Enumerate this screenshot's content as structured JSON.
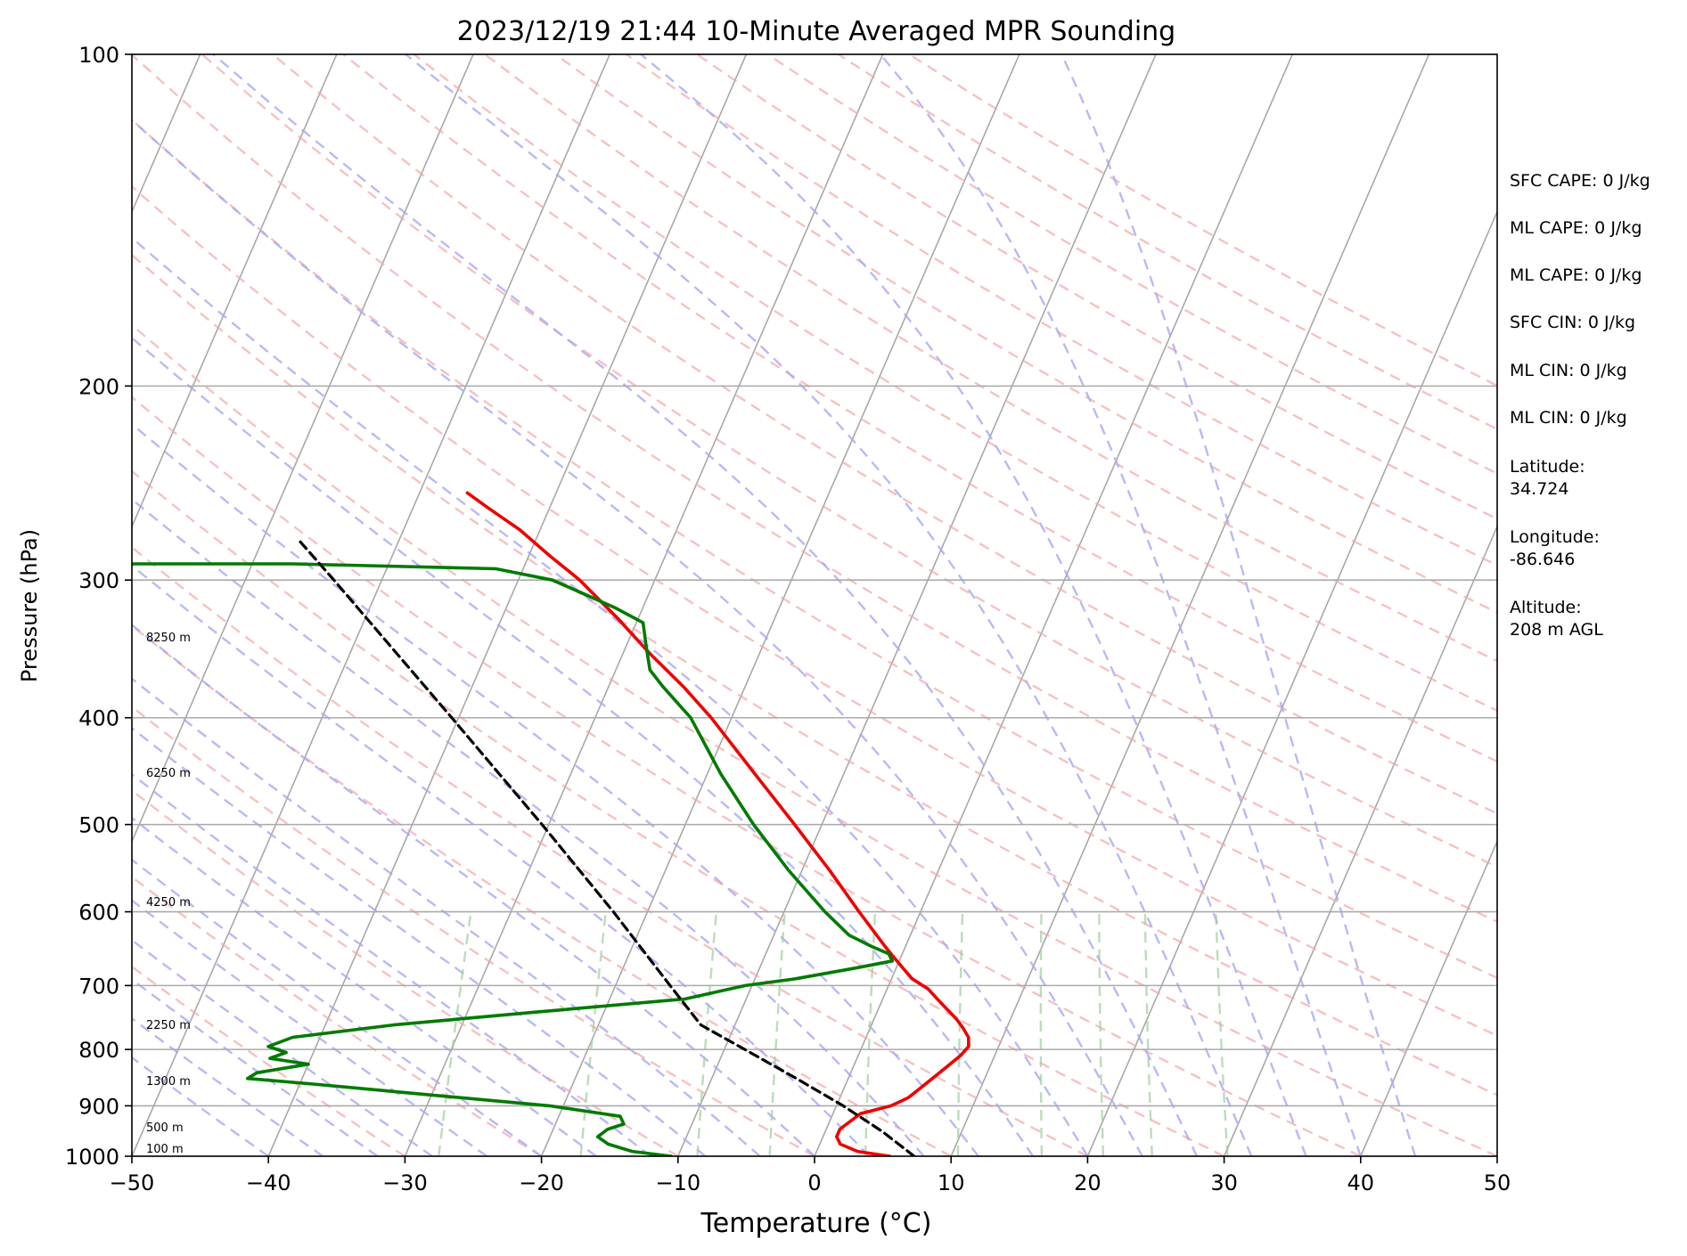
{
  "chart_data": {
    "type": "line",
    "title": "2023/12/19 21:44 10-Minute Averaged MPR Sounding",
    "xlabel": "Temperature (°C)",
    "ylabel": "Pressure (hPa)",
    "xlim": [
      -50,
      50
    ],
    "ylim": [
      1000,
      100
    ],
    "yscale": "log",
    "grid": true,
    "skew_deg_per_decade": 35,
    "x_ticks": [
      -50,
      -40,
      -30,
      -20,
      -10,
      0,
      10,
      20,
      30,
      40,
      50
    ],
    "x_tick_labels": [
      "−50",
      "−40",
      "−30",
      "−20",
      "−10",
      "0",
      "10",
      "20",
      "30",
      "40",
      "50"
    ],
    "y_ticks": [
      1000,
      900,
      800,
      700,
      600,
      500,
      400,
      300,
      200,
      100
    ],
    "y_tick_labels": [
      "1000",
      "900",
      "800",
      "700",
      "600",
      "500",
      "400",
      "300",
      "200",
      "100"
    ],
    "height_labels": [
      {
        "p": 295,
        "text": "8250 m"
      },
      {
        "p": 375,
        "text": "6250 m"
      },
      {
        "p": 462,
        "text": "4250 m"
      },
      {
        "p": 553,
        "text": "2250 m"
      },
      {
        "p": 600,
        "text": "1300 m"
      },
      {
        "p": 640,
        "text": "500 m"
      },
      {
        "p": 661,
        "text": "100 m"
      }
    ],
    "series": [
      {
        "color": "#ee0000",
        "role": "temperature",
        "points": [
          [
            1000,
            5.5
          ],
          [
            990,
            3.0
          ],
          [
            975,
            1.5
          ],
          [
            960,
            1.0
          ],
          [
            945,
            1.0
          ],
          [
            930,
            1.5
          ],
          [
            915,
            2.0
          ],
          [
            900,
            4.0
          ],
          [
            885,
            5.0
          ],
          [
            870,
            5.5
          ],
          [
            855,
            6.0
          ],
          [
            840,
            6.5
          ],
          [
            825,
            7.0
          ],
          [
            810,
            7.5
          ],
          [
            795,
            7.8
          ],
          [
            780,
            7.5
          ],
          [
            765,
            6.8
          ],
          [
            750,
            6.0
          ],
          [
            735,
            5.0
          ],
          [
            720,
            4.0
          ],
          [
            705,
            3.0
          ],
          [
            690,
            1.5
          ],
          [
            675,
            0.5
          ],
          [
            660,
            -0.5
          ],
          [
            645,
            -1.5
          ],
          [
            600,
            -4.5
          ],
          [
            550,
            -8.0
          ],
          [
            500,
            -12.0
          ],
          [
            450,
            -16.5
          ],
          [
            400,
            -21.5
          ],
          [
            375,
            -24.5
          ],
          [
            350,
            -28.0
          ],
          [
            325,
            -31.5
          ],
          [
            300,
            -35.5
          ],
          [
            285,
            -38.5
          ],
          [
            270,
            -41.5
          ],
          [
            258,
            -44.5
          ],
          [
            250,
            -46.5
          ]
        ]
      },
      {
        "color": "#007a00",
        "role": "dewpoint",
        "points": [
          [
            1000,
            -10.5
          ],
          [
            990,
            -13.5
          ],
          [
            975,
            -15.5
          ],
          [
            960,
            -16.5
          ],
          [
            945,
            -16.0
          ],
          [
            935,
            -15.0
          ],
          [
            920,
            -15.5
          ],
          [
            900,
            -21.0
          ],
          [
            880,
            -30.0
          ],
          [
            860,
            -39.0
          ],
          [
            850,
            -44.0
          ],
          [
            840,
            -43.5
          ],
          [
            825,
            -40.0
          ],
          [
            815,
            -43.0
          ],
          [
            805,
            -42.0
          ],
          [
            795,
            -43.5
          ],
          [
            780,
            -42.0
          ],
          [
            760,
            -35.0
          ],
          [
            740,
            -25.0
          ],
          [
            720,
            -14.5
          ],
          [
            700,
            -10.5
          ],
          [
            690,
            -7.0
          ],
          [
            675,
            -3.0
          ],
          [
            665,
            -0.5
          ],
          [
            655,
            -1.0
          ],
          [
            645,
            -2.5
          ],
          [
            630,
            -4.5
          ],
          [
            600,
            -7.0
          ],
          [
            550,
            -11.0
          ],
          [
            500,
            -15.0
          ],
          [
            450,
            -19.0
          ],
          [
            400,
            -23.0
          ],
          [
            375,
            -26.0
          ],
          [
            362,
            -27.5
          ],
          [
            345,
            -28.5
          ],
          [
            328,
            -29.5
          ],
          [
            318,
            -32.0
          ],
          [
            308,
            -35.0
          ],
          [
            300,
            -37.5
          ],
          [
            293,
            -42.0
          ],
          [
            290,
            -57.0
          ],
          [
            290,
            -70.0
          ]
        ]
      },
      {
        "color": "#000000",
        "role": "parcel",
        "dashed": true,
        "points": [
          [
            1000,
            7.3
          ],
          [
            950,
            4.2
          ],
          [
            900,
            0.5
          ],
          [
            850,
            -3.8
          ],
          [
            800,
            -8.5
          ],
          [
            760,
            -12.5
          ],
          [
            700,
            -16.0
          ],
          [
            600,
            -22.5
          ],
          [
            500,
            -30.5
          ],
          [
            400,
            -40.5
          ],
          [
            300,
            -53.5
          ],
          [
            275,
            -57.5
          ]
        ]
      }
    ]
  },
  "stats": {
    "sfc_cape": "SFC CAPE: 0 J/kg",
    "ml_cape_1": "ML CAPE: 0 J/kg",
    "ml_cape_2": "ML CAPE: 0 J/kg",
    "sfc_cin": "SFC CIN: 0 J/kg",
    "ml_cin_1": "ML CIN: 0 J/kg",
    "ml_cin_2": "ML CIN: 0 J/kg",
    "latitude_label": "Latitude:",
    "latitude_value": "34.724",
    "longitude_label": "Longitude:",
    "longitude_value": "-86.646",
    "altitude_label": "Altitude:",
    "altitude_value": "208 m AGL"
  }
}
